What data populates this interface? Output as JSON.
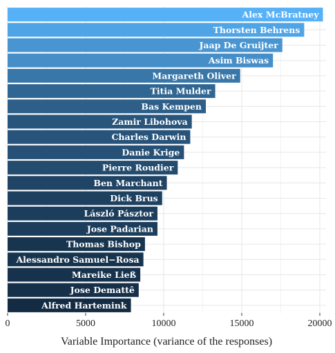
{
  "chart_data": {
    "type": "bar",
    "orientation": "horizontal",
    "title": "",
    "xlabel": "Variable Importance (variance of the responses)",
    "ylabel": "",
    "xlim": [
      0,
      20000
    ],
    "xticks": [
      0,
      5000,
      10000,
      15000,
      20000
    ],
    "xtick_labels": [
      "0",
      "5000",
      "10000",
      "15000",
      "20000"
    ],
    "grid": true,
    "legend": "none",
    "categories": [
      "Alex McBratney",
      "Thorsten Behrens",
      "Jaap De Gruijter",
      "Asim Biswas",
      "Margareth Oliver",
      "Titia Mulder",
      "Bas Kempen",
      "Zamir Libohova",
      "Charles Darwin",
      "Danie Krige",
      "Pierre Roudier",
      "Ben Marchant",
      "Dick Brus",
      "László Pásztor",
      "Jose Padarian",
      "Thomas Bishop",
      "Alessandro Samuel−Rosa",
      "Mareike Ließ",
      "Jose Demattê",
      "Alfred Hartemink"
    ],
    "values": [
      20200,
      19000,
      17600,
      17000,
      14900,
      13300,
      12700,
      11800,
      11700,
      11300,
      10900,
      10200,
      9900,
      9600,
      9600,
      8800,
      8700,
      8500,
      8400,
      7900
    ],
    "colors": {
      "bar_light": "#56b1f7",
      "bar_dark": "#132b43",
      "label_text": "#ffffff",
      "grid_major": "#e6e6e6",
      "grid_minor": "#f2f2f2"
    }
  }
}
